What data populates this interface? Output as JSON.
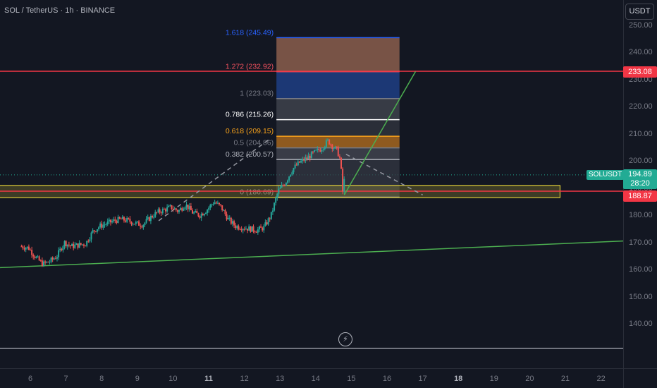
{
  "header": {
    "symbol_title": "SOL / TetherUS · 1h · BINANCE",
    "currency_button": "USDT"
  },
  "price_axis": {
    "ticks": [
      "250.00",
      "240.00",
      "230.00",
      "220.00",
      "210.00",
      "200.00",
      "190.00",
      "180.00",
      "170.00",
      "160.00",
      "150.00",
      "140.00"
    ],
    "resistance_label": "233.08",
    "support_label": "188.87",
    "symbol_tag": "SOLUSDT",
    "live_price": "194.89",
    "countdown": "28:20"
  },
  "time_axis": {
    "ticks": [
      {
        "label": "6",
        "bold": false
      },
      {
        "label": "7",
        "bold": false
      },
      {
        "label": "8",
        "bold": false
      },
      {
        "label": "9",
        "bold": false
      },
      {
        "label": "10",
        "bold": false
      },
      {
        "label": "11",
        "bold": true
      },
      {
        "label": "12",
        "bold": false
      },
      {
        "label": "13",
        "bold": false
      },
      {
        "label": "14",
        "bold": false
      },
      {
        "label": "15",
        "bold": false
      },
      {
        "label": "16",
        "bold": false
      },
      {
        "label": "17",
        "bold": false
      },
      {
        "label": "18",
        "bold": true
      },
      {
        "label": "19",
        "bold": false
      },
      {
        "label": "20",
        "bold": false
      },
      {
        "label": "21",
        "bold": false
      },
      {
        "label": "22",
        "bold": false
      }
    ]
  },
  "fibonacci": {
    "levels": [
      {
        "label": "1.618 (245.49)",
        "price": 245.49,
        "color": "#2962ff"
      },
      {
        "label": "1.272 (232.92)",
        "price": 232.92,
        "color": "#f7525f"
      },
      {
        "label": "1 (223.03)",
        "price": 223.03,
        "color": "#787b86"
      },
      {
        "label": "0.786 (215.26)",
        "price": 215.26,
        "color": "#ffffff"
      },
      {
        "label": "0.618 (209.15)",
        "price": 209.15,
        "color": "#f7a21b"
      },
      {
        "label": "0.5 (204.86)",
        "price": 204.86,
        "color": "#787b86"
      },
      {
        "label": "0.382 (200.57)",
        "price": 200.57,
        "color": "#b2b5be"
      },
      {
        "label": "0 (186.69)",
        "price": 186.69,
        "color": "#787b86"
      }
    ]
  },
  "colors": {
    "background": "#131722",
    "up_candle": "#26a69a",
    "down_candle": "#ef5350",
    "resistance": "#f23645",
    "trendline": "#4caf50",
    "zone_border": "#ffeb3b",
    "live_price": "#22ab94",
    "fib_top_zone": "#8b5e4c",
    "fib_blue_zone": "#1c3a7a",
    "fib_orange_zone": "#a6661f"
  },
  "icons": {
    "replay": "lightning-icon"
  },
  "chart_data": {
    "type": "candlestick",
    "symbol": "SOL / TetherUS",
    "interval": "1h",
    "x_axis_dates": [
      "6",
      "7",
      "8",
      "9",
      "10",
      "11",
      "12",
      "13",
      "14",
      "15",
      "16",
      "17",
      "18",
      "19",
      "20",
      "21",
      "22"
    ],
    "y_range": [
      131,
      256
    ],
    "price_series": [
      [
        5.75,
        168.5
      ],
      [
        5.95,
        168
      ],
      [
        6.15,
        164.5
      ],
      [
        6.35,
        162
      ],
      [
        6.55,
        163
      ],
      [
        6.75,
        165
      ],
      [
        6.95,
        170
      ],
      [
        7.15,
        168.5
      ],
      [
        7.35,
        169
      ],
      [
        7.55,
        169.5
      ],
      [
        7.75,
        174
      ],
      [
        7.95,
        176
      ],
      [
        8.15,
        177
      ],
      [
        8.35,
        178
      ],
      [
        8.55,
        178.5
      ],
      [
        8.75,
        178
      ],
      [
        8.95,
        177
      ],
      [
        9.15,
        176.5
      ],
      [
        9.35,
        179
      ],
      [
        9.55,
        181
      ],
      [
        9.75,
        182
      ],
      [
        9.95,
        183
      ],
      [
        10.15,
        181.5
      ],
      [
        10.35,
        184
      ],
      [
        10.55,
        181
      ],
      [
        10.75,
        180
      ],
      [
        10.95,
        182
      ],
      [
        11.15,
        185
      ],
      [
        11.35,
        183
      ],
      [
        11.55,
        178.5
      ],
      [
        11.75,
        176
      ],
      [
        11.95,
        175.5
      ],
      [
        12.15,
        175
      ],
      [
        12.35,
        174.5
      ],
      [
        12.55,
        175.5
      ],
      [
        12.75,
        180
      ],
      [
        12.95,
        189
      ],
      [
        13.15,
        192
      ],
      [
        13.35,
        197
      ],
      [
        13.55,
        199.5
      ],
      [
        13.75,
        201
      ],
      [
        13.95,
        203
      ],
      [
        14.15,
        204.5
      ],
      [
        14.35,
        207.5
      ],
      [
        14.5,
        205
      ],
      [
        14.6,
        204
      ],
      [
        14.7,
        200
      ],
      [
        14.75,
        188
      ],
      [
        14.82,
        194.9
      ]
    ],
    "annotations": {
      "resistance_line": 233.08,
      "support_line": 188.87,
      "demand_zone": [
        186.5,
        191
      ],
      "rising_trendline": [
        [
          5.7,
          160.7
        ],
        [
          22.5,
          170.5
        ]
      ],
      "breakout_line": [
        [
          14.8,
          187.5
        ],
        [
          16.8,
          233
        ]
      ],
      "projection_dashed_down": [
        [
          14.85,
          202.5
        ],
        [
          17,
          187.5
        ]
      ],
      "projection_dashed_up": [
        [
          9.6,
          178
        ],
        [
          12.75,
          208.5
        ]
      ],
      "baseline": 131
    },
    "last_price": 194.89
  }
}
